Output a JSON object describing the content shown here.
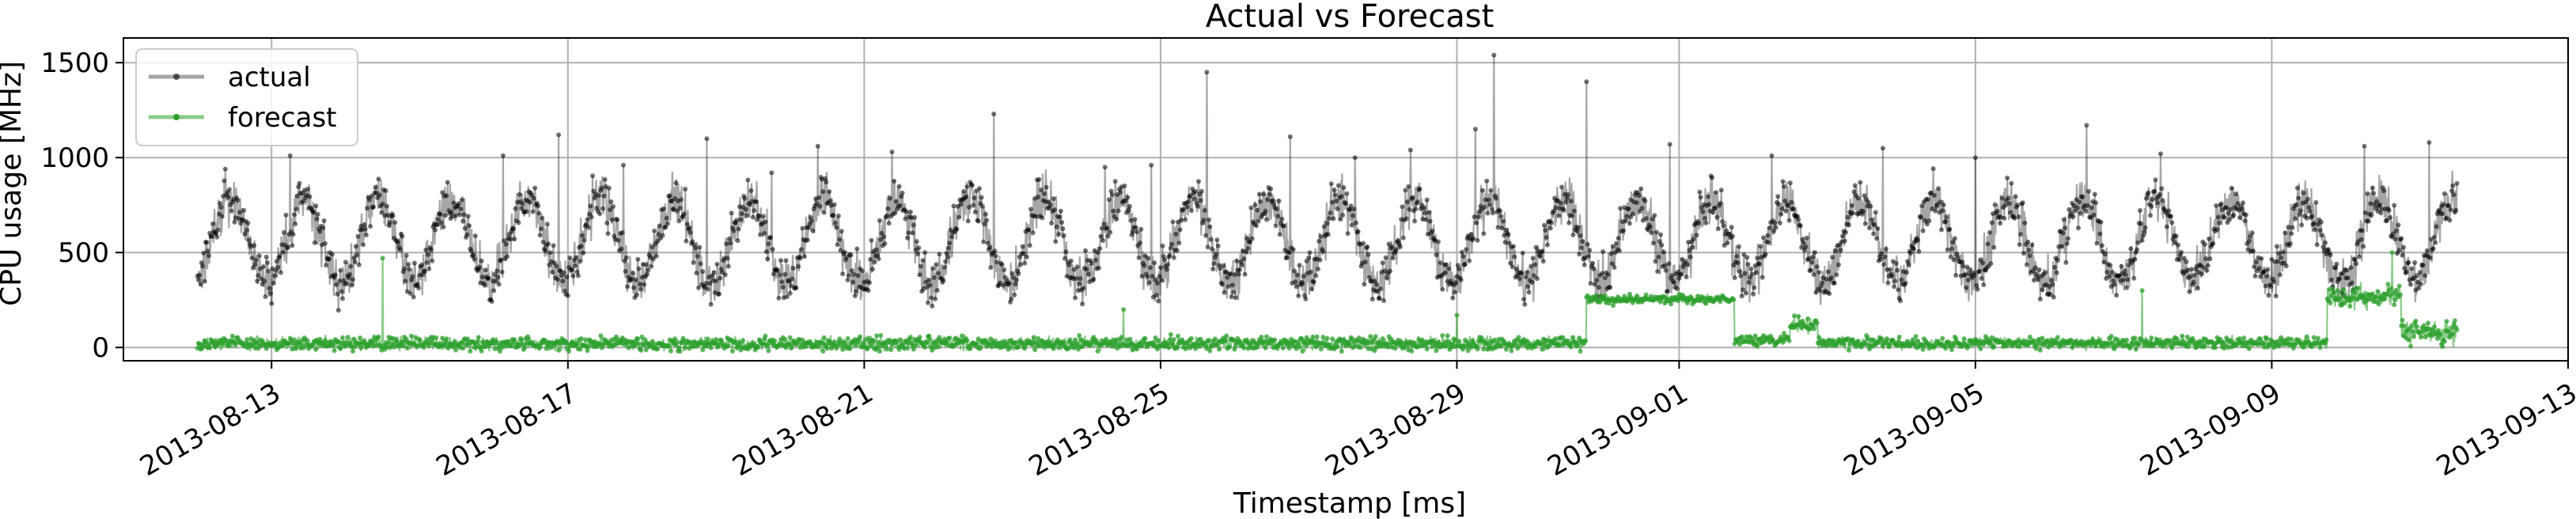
{
  "chart_data": {
    "type": "line",
    "title": "Actual vs Forecast",
    "xlabel": "Timestamp [ms]",
    "ylabel": "CPU usage [MHz]",
    "x_range": [
      "2013-08-11T00:00",
      "2013-09-13T00:00"
    ],
    "data_start": "2013-08-12T00:00",
    "data_end": "2013-09-11T12:00",
    "ylim": [
      -70,
      1630
    ],
    "grid": true,
    "legend_position": "top-left",
    "x_ticks": [
      "2013-08-13",
      "2013-08-17",
      "2013-08-21",
      "2013-08-25",
      "2013-08-29",
      "2013-09-01",
      "2013-09-05",
      "2013-09-09",
      "2013-09-13"
    ],
    "y_ticks": [
      0,
      500,
      1000,
      1500
    ],
    "series": [
      {
        "name": "actual",
        "color": "#000000",
        "opacity": 0.35,
        "marker": "dot",
        "approx_daily_pattern": {
          "base": 560,
          "amplitude": 220,
          "period_days": 1,
          "noise": 110
        },
        "spikes": [
          {
            "x": "2013-08-12T09:00",
            "y": 940
          },
          {
            "x": "2013-08-13T06:00",
            "y": 1010
          },
          {
            "x": "2013-08-15T09:00",
            "y": 870
          },
          {
            "x": "2013-08-16T03:00",
            "y": 1010
          },
          {
            "x": "2013-08-16T21:00",
            "y": 1120
          },
          {
            "x": "2013-08-17T18:00",
            "y": 960
          },
          {
            "x": "2013-08-18T21:00",
            "y": 1100
          },
          {
            "x": "2013-08-19T18:00",
            "y": 920
          },
          {
            "x": "2013-08-20T09:00",
            "y": 1060
          },
          {
            "x": "2013-08-21T09:00",
            "y": 1030
          },
          {
            "x": "2013-08-22T18:00",
            "y": 1230
          },
          {
            "x": "2013-08-24T06:00",
            "y": 950
          },
          {
            "x": "2013-08-24T21:00",
            "y": 960
          },
          {
            "x": "2013-08-25T15:00",
            "y": 1450
          },
          {
            "x": "2013-08-26T18:00",
            "y": 1110
          },
          {
            "x": "2013-08-27T15:00",
            "y": 1000
          },
          {
            "x": "2013-08-28T09:00",
            "y": 1040
          },
          {
            "x": "2013-08-29T06:00",
            "y": 1150
          },
          {
            "x": "2013-08-29T12:00",
            "y": 1540
          },
          {
            "x": "2013-08-30T18:00",
            "y": 1400
          },
          {
            "x": "2013-08-31T21:00",
            "y": 1070
          },
          {
            "x": "2013-09-02T06:00",
            "y": 1010
          },
          {
            "x": "2013-09-03T18:00",
            "y": 1050
          },
          {
            "x": "2013-09-05T00:00",
            "y": 1000
          },
          {
            "x": "2013-09-06T12:00",
            "y": 1170
          },
          {
            "x": "2013-09-07T12:00",
            "y": 1020
          },
          {
            "x": "2013-09-10T06:00",
            "y": 1060
          },
          {
            "x": "2013-09-11T03:00",
            "y": 1080
          }
        ]
      },
      {
        "name": "forecast",
        "color": "#2ca02c",
        "opacity": 0.55,
        "marker": "dot",
        "segments": [
          {
            "from": "2013-08-12T00:00",
            "to": "2013-08-30T18:00",
            "level": 20,
            "noise": 35
          },
          {
            "from": "2013-08-30T18:00",
            "to": "2013-09-01T18:00",
            "level": 255,
            "noise": 25
          },
          {
            "from": "2013-09-01T18:00",
            "to": "2013-09-02T12:00",
            "level": 40,
            "noise": 30
          },
          {
            "from": "2013-09-02T12:00",
            "to": "2013-09-02T21:00",
            "level": 120,
            "noise": 40
          },
          {
            "from": "2013-09-02T21:00",
            "to": "2013-09-09T18:00",
            "level": 25,
            "noise": 30
          },
          {
            "from": "2013-09-09T18:00",
            "to": "2013-09-10T18:00",
            "level": 270,
            "noise": 60
          },
          {
            "from": "2013-09-10T18:00",
            "to": "2013-09-11T12:00",
            "level": 80,
            "noise": 60
          }
        ],
        "spikes": [
          {
            "x": "2013-08-14T12:00",
            "y": 470
          },
          {
            "x": "2013-08-24T12:00",
            "y": 200
          },
          {
            "x": "2013-08-29T00:00",
            "y": 170
          },
          {
            "x": "2013-09-07T06:00",
            "y": 300
          },
          {
            "x": "2013-09-10T15:00",
            "y": 500
          }
        ]
      }
    ]
  }
}
